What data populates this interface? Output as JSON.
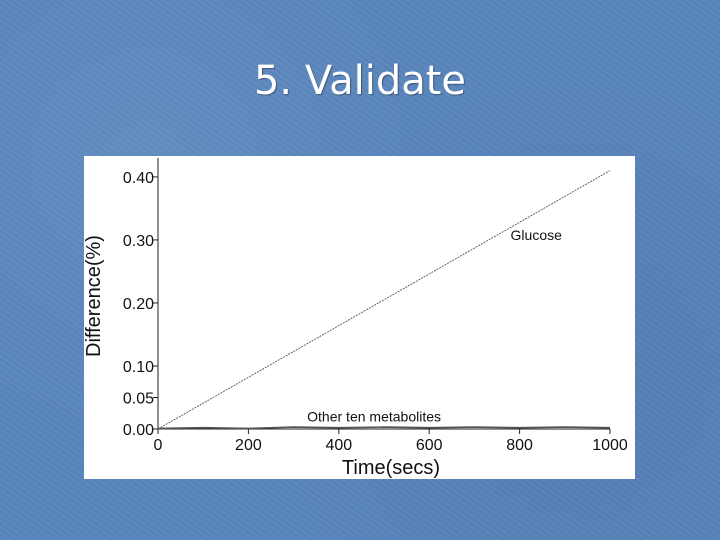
{
  "slide": {
    "title": "5. Validate"
  },
  "chart_data": {
    "type": "line",
    "xlabel": "Time(secs)",
    "ylabel": "Difference(%)",
    "xlim": [
      0,
      1000
    ],
    "ylim": [
      0,
      0.43
    ],
    "xticks": [
      "0",
      "200",
      "400",
      "600",
      "800",
      "1000"
    ],
    "yticks": [
      {
        "value": 0.0,
        "label": "0.00"
      },
      {
        "value": 0.05,
        "label": "0.05"
      },
      {
        "value": 0.1,
        "label": "0.10"
      },
      {
        "value": 0.2,
        "label": "0.20"
      },
      {
        "value": 0.3,
        "label": "0.30"
      },
      {
        "value": 0.4,
        "label": "0.40"
      }
    ],
    "grid": false,
    "series": [
      {
        "name": "Glucose",
        "x": [
          0,
          1000
        ],
        "y": [
          0.0,
          0.41
        ]
      },
      {
        "name": "Other ten metabolites",
        "x": [
          0,
          100,
          200,
          300,
          400,
          500,
          600,
          700,
          800,
          900,
          1000
        ],
        "y": [
          0.001,
          0.002,
          0.001,
          0.003,
          0.002,
          0.003,
          0.002,
          0.003,
          0.002,
          0.003,
          0.002
        ]
      }
    ],
    "annotations": [
      {
        "text": "Glucose",
        "x": 780,
        "y": 0.3
      },
      {
        "text": "Other ten metabolites",
        "x": 330,
        "y": 0.012
      }
    ],
    "colors": {
      "line": "#555555",
      "axis": "#222222",
      "background": "#ffffff"
    }
  }
}
